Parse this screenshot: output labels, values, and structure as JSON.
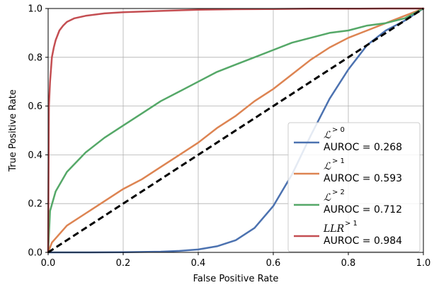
{
  "chart_data": {
    "type": "line",
    "xlabel": "False Positive Rate",
    "ylabel": "True Positive Rate",
    "xlim": [
      0,
      1
    ],
    "ylim": [
      0,
      1
    ],
    "x_ticks": [
      "0.0",
      "0.2",
      "0.4",
      "0.6",
      "0.8",
      "1.0"
    ],
    "y_ticks": [
      "0.0",
      "0.2",
      "0.4",
      "0.6",
      "0.8",
      "1.0"
    ],
    "grid": true,
    "legend_position": "bottom-right",
    "series": [
      {
        "name": "ℒ",
        "name_sup": "> 0",
        "auroc_label": "AUROC = 0.268",
        "color": "#4c72b0",
        "x": [
          0,
          0.1,
          0.2,
          0.3,
          0.35,
          0.4,
          0.45,
          0.5,
          0.55,
          0.6,
          0.65,
          0.7,
          0.75,
          0.8,
          0.85,
          0.9,
          0.95,
          0.97,
          1.0
        ],
        "y": [
          0,
          0,
          0.001,
          0.003,
          0.006,
          0.012,
          0.025,
          0.05,
          0.1,
          0.19,
          0.32,
          0.48,
          0.63,
          0.75,
          0.85,
          0.91,
          0.95,
          0.97,
          1.0
        ]
      },
      {
        "name": "ℒ",
        "name_sup": "> 1",
        "auroc_label": "AUROC = 0.593",
        "color": "#dd8452",
        "x": [
          0,
          0.01,
          0.05,
          0.1,
          0.15,
          0.2,
          0.25,
          0.3,
          0.35,
          0.4,
          0.45,
          0.5,
          0.55,
          0.6,
          0.65,
          0.7,
          0.75,
          0.8,
          0.85,
          0.9,
          0.95,
          1.0
        ],
        "y": [
          0,
          0.04,
          0.11,
          0.16,
          0.21,
          0.26,
          0.3,
          0.35,
          0.4,
          0.45,
          0.51,
          0.56,
          0.62,
          0.67,
          0.73,
          0.79,
          0.84,
          0.88,
          0.91,
          0.94,
          0.97,
          1.0
        ]
      },
      {
        "name": "ℒ",
        "name_sup": "> 2",
        "auroc_label": "AUROC = 0.712",
        "color": "#55a868",
        "x": [
          0,
          0.005,
          0.02,
          0.05,
          0.1,
          0.15,
          0.2,
          0.25,
          0.3,
          0.35,
          0.4,
          0.45,
          0.5,
          0.55,
          0.6,
          0.65,
          0.7,
          0.75,
          0.8,
          0.85,
          0.9,
          0.95,
          1.0
        ],
        "y": [
          0,
          0.17,
          0.25,
          0.33,
          0.41,
          0.47,
          0.52,
          0.57,
          0.62,
          0.66,
          0.7,
          0.74,
          0.77,
          0.8,
          0.83,
          0.86,
          0.88,
          0.9,
          0.91,
          0.93,
          0.94,
          0.96,
          1.0
        ]
      },
      {
        "name": "LLR",
        "name_sup": "> 1",
        "auroc_label": "AUROC = 0.984",
        "color": "#c44e52",
        "x": [
          0,
          0.002,
          0.005,
          0.01,
          0.015,
          0.02,
          0.03,
          0.04,
          0.05,
          0.07,
          0.1,
          0.15,
          0.2,
          0.3,
          0.4,
          0.5,
          0.6,
          0.7,
          0.8,
          0.9,
          1.0
        ],
        "y": [
          0,
          0.6,
          0.7,
          0.8,
          0.84,
          0.87,
          0.91,
          0.93,
          0.945,
          0.96,
          0.97,
          0.98,
          0.985,
          0.99,
          0.995,
          0.997,
          0.998,
          0.999,
          0.999,
          1.0,
          1.0
        ]
      },
      {
        "name": "",
        "color": "#000000",
        "dashed": true,
        "x": [
          0,
          1
        ],
        "y": [
          0,
          1
        ]
      }
    ]
  }
}
